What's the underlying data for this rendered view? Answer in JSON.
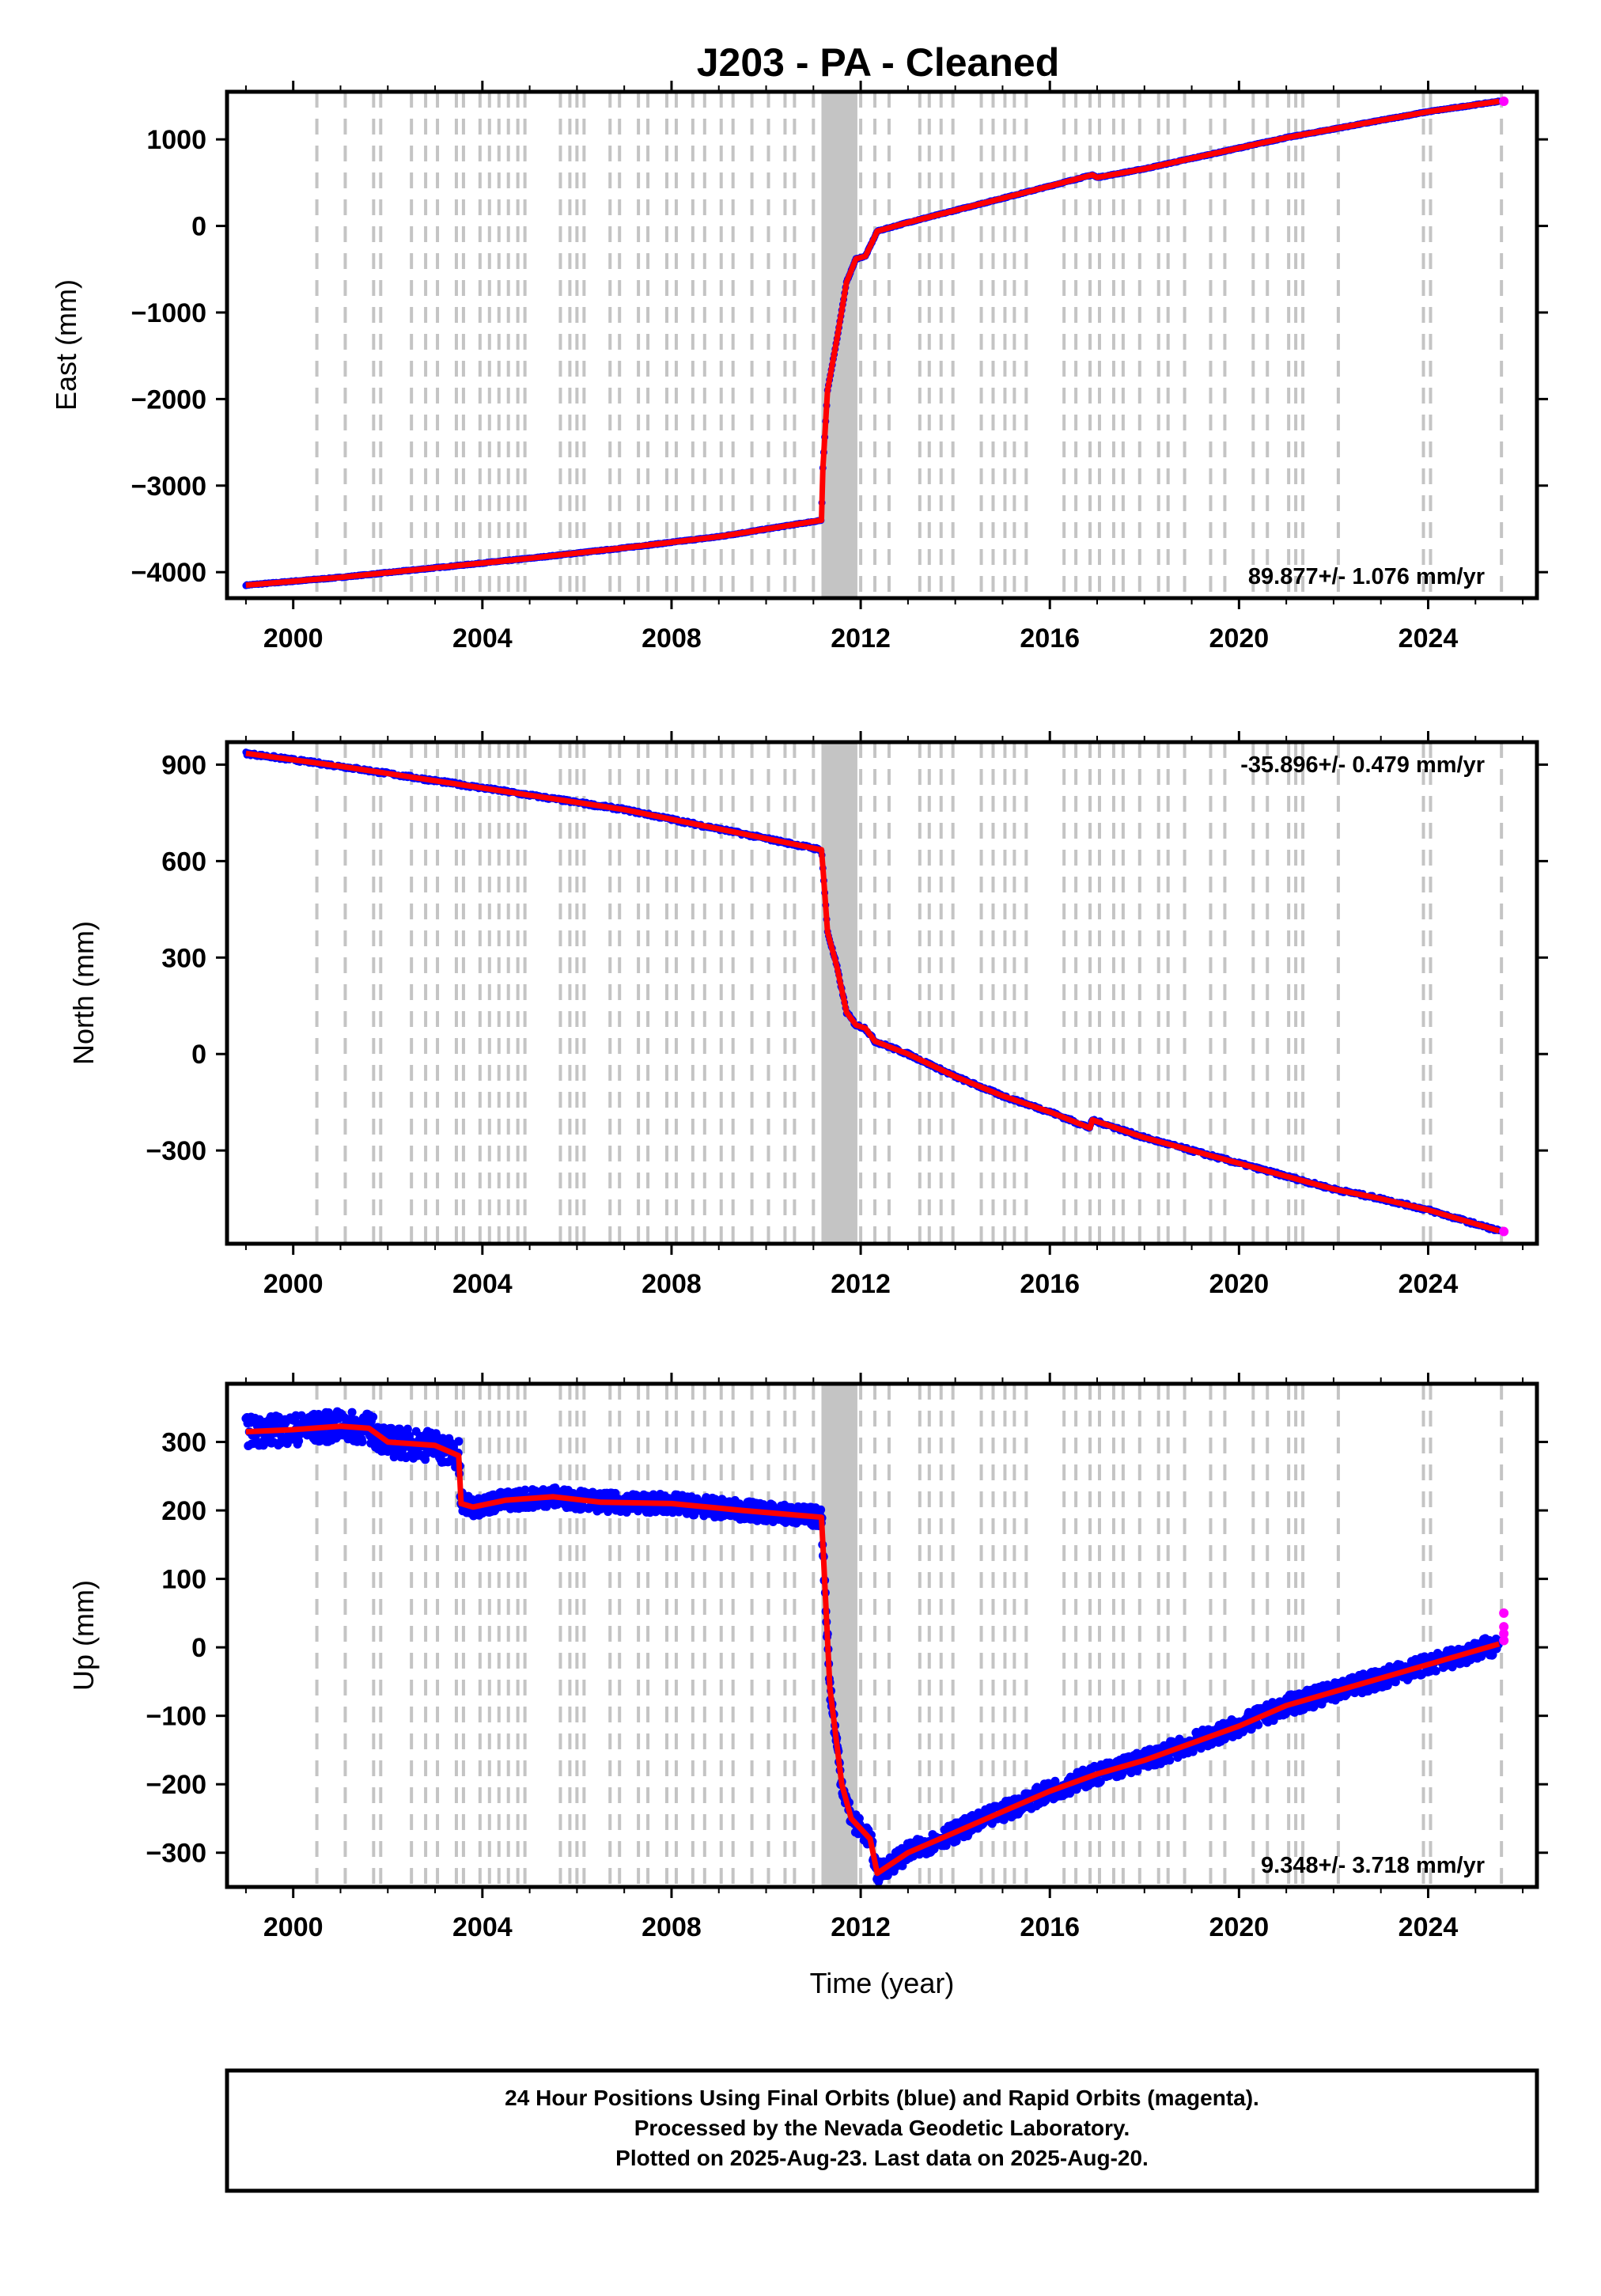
{
  "title": "J203  - PA - Cleaned",
  "colors": {
    "final": "#0000ff",
    "rapid": "#ff00ff",
    "model": "#ff0000",
    "events": "#c4c4c4"
  },
  "chart_data": [
    {
      "type": "scatter",
      "component": "East",
      "ylabel": "East (mm)",
      "xlabel": "",
      "xlim": [
        1998.6,
        2026.3
      ],
      "ylim": [
        -4300,
        1550
      ],
      "xticks": [
        "2000",
        "2004",
        "2008",
        "2012",
        "2016",
        "2020",
        "2024"
      ],
      "yticks": [
        "1000",
        "0",
        "−1000",
        "−2000",
        "−3000",
        "−4000"
      ],
      "ytick_values": [
        1000,
        0,
        -1000,
        -2000,
        -3000,
        -4000
      ],
      "rate_label": "89.877+/- 1.076 mm/yr",
      "rate_position": "bottom-right",
      "series": [
        {
          "name": "Final Orbits",
          "color": "blue",
          "x": [
            1999.0,
            2001.0,
            2003.0,
            2005.0,
            2007.0,
            2009.0,
            2011.17,
            2011.2,
            2011.3,
            2011.5,
            2011.7,
            2011.9,
            2012.1,
            2012.3,
            2012.35,
            2013.0,
            2014.0,
            2015.0,
            2016.0,
            2016.9,
            2017.0,
            2018.0,
            2019.0,
            2020.0,
            2021.0,
            2022.0,
            2023.0,
            2024.0,
            2025.5
          ],
          "y": [
            -4150,
            -4060,
            -3950,
            -3840,
            -3720,
            -3590,
            -3400,
            -2800,
            -1900,
            -1300,
            -650,
            -380,
            -350,
            -120,
            -60,
            40,
            180,
            320,
            460,
            590,
            560,
            660,
            780,
            900,
            1020,
            1120,
            1220,
            1320,
            1440
          ]
        },
        {
          "name": "Rapid Orbits",
          "color": "magenta",
          "x": [
            2025.6
          ],
          "y": [
            1440
          ]
        }
      ]
    },
    {
      "type": "scatter",
      "component": "North",
      "ylabel": "North (mm)",
      "xlabel": "",
      "xlim": [
        1998.6,
        2026.3
      ],
      "ylim": [
        -590,
        970
      ],
      "xticks": [
        "2000",
        "2004",
        "2008",
        "2012",
        "2016",
        "2020",
        "2024"
      ],
      "yticks": [
        "900",
        "600",
        "300",
        "0",
        "−300"
      ],
      "ytick_values": [
        900,
        600,
        300,
        0,
        -300
      ],
      "rate_label": "-35.896+/- 0.479 mm/yr",
      "rate_position": "top-right",
      "series": [
        {
          "name": "Final Orbits",
          "color": "blue",
          "x": [
            1999.0,
            2001.0,
            2003.0,
            2005.0,
            2007.0,
            2009.0,
            2011.17,
            2011.2,
            2011.3,
            2011.5,
            2011.7,
            2011.9,
            2012.1,
            2012.3,
            2013.0,
            2014.0,
            2015.0,
            2016.0,
            2016.85,
            2016.9,
            2018.0,
            2019.0,
            2020.0,
            2021.0,
            2022.0,
            2023.0,
            2024.0,
            2025.5
          ],
          "y": [
            935,
            895,
            850,
            805,
            760,
            700,
            635,
            580,
            380,
            270,
            130,
            90,
            80,
            40,
            0,
            -70,
            -130,
            -180,
            -230,
            -205,
            -260,
            -300,
            -340,
            -380,
            -420,
            -450,
            -485,
            -550
          ]
        },
        {
          "name": "Rapid Orbits",
          "color": "magenta",
          "x": [
            2025.6
          ],
          "y": [
            -552
          ]
        }
      ]
    },
    {
      "type": "scatter",
      "component": "Up",
      "ylabel": "Up (mm)",
      "xlabel": "Time (year)",
      "xlim": [
        1998.6,
        2026.3
      ],
      "ylim": [
        -350,
        385
      ],
      "xticks": [
        "2000",
        "2004",
        "2008",
        "2012",
        "2016",
        "2020",
        "2024"
      ],
      "yticks": [
        "300",
        "200",
        "100",
        "0",
        "−100",
        "−200",
        "−300"
      ],
      "ytick_values": [
        300,
        200,
        100,
        0,
        -100,
        -200,
        -300
      ],
      "rate_label": "9.348+/- 3.718 mm/yr",
      "rate_position": "bottom-right",
      "series": [
        {
          "name": "Final Orbits",
          "color": "blue",
          "x": [
            1999.0,
            2000.0,
            2001.0,
            2001.6,
            2002.0,
            2003.0,
            2003.5,
            2003.55,
            2003.8,
            2004.5,
            2005.5,
            2006.5,
            2008.0,
            2009.5,
            2011.17,
            2011.2,
            2011.35,
            2011.6,
            2011.8,
            2012.0,
            2012.2,
            2012.35,
            2013.0,
            2014.0,
            2015.0,
            2016.0,
            2017.0,
            2018.0,
            2019.0,
            2020.0,
            2021.0,
            2022.0,
            2023.0,
            2024.0,
            2025.5
          ],
          "y": [
            315,
            318,
            323,
            320,
            300,
            295,
            280,
            210,
            205,
            215,
            220,
            212,
            210,
            200,
            190,
            150,
            -60,
            -200,
            -250,
            -265,
            -280,
            -330,
            -300,
            -270,
            -240,
            -210,
            -185,
            -165,
            -140,
            -115,
            -85,
            -65,
            -45,
            -25,
            5
          ]
        },
        {
          "name": "Rapid Orbits",
          "color": "magenta",
          "x": [
            2025.6,
            2025.6,
            2025.6,
            2025.6
          ],
          "y": [
            50,
            30,
            20,
            10
          ]
        }
      ]
    }
  ],
  "events_years": [
    2000.5,
    2001.1,
    2001.7,
    2001.85,
    2002.5,
    2002.8,
    2003.05,
    2003.45,
    2003.6,
    2003.95,
    2004.15,
    2004.35,
    2004.55,
    2004.75,
    2004.9,
    2005.65,
    2005.85,
    2006.0,
    2006.15,
    2006.7,
    2006.9,
    2007.3,
    2007.5,
    2007.9,
    2008.1,
    2008.45,
    2008.7,
    2009.05,
    2009.3,
    2009.7,
    2010.05,
    2010.4,
    2010.6,
    2011.0,
    2012.0,
    2012.3,
    2012.6,
    2013.25,
    2013.45,
    2013.7,
    2013.95,
    2014.55,
    2014.8,
    2015.05,
    2015.25,
    2015.5,
    2016.3,
    2016.55,
    2016.85,
    2017.05,
    2017.35,
    2017.55,
    2017.9,
    2018.3,
    2018.5,
    2018.85,
    2019.4,
    2019.7,
    2020.3,
    2020.6,
    2021.05,
    2021.2,
    2021.35,
    2022.1,
    2023.9,
    2024.05,
    2025.55
  ],
  "events_block": [
    2011.17,
    2011.93
  ],
  "footer": {
    "line1": "24 Hour Positions Using Final Orbits (blue) and Rapid Orbits (magenta).",
    "line2": "Processed by the Nevada Geodetic Laboratory.",
    "line3": "Plotted on 2025-Aug-23. Last data on 2025-Aug-20."
  }
}
